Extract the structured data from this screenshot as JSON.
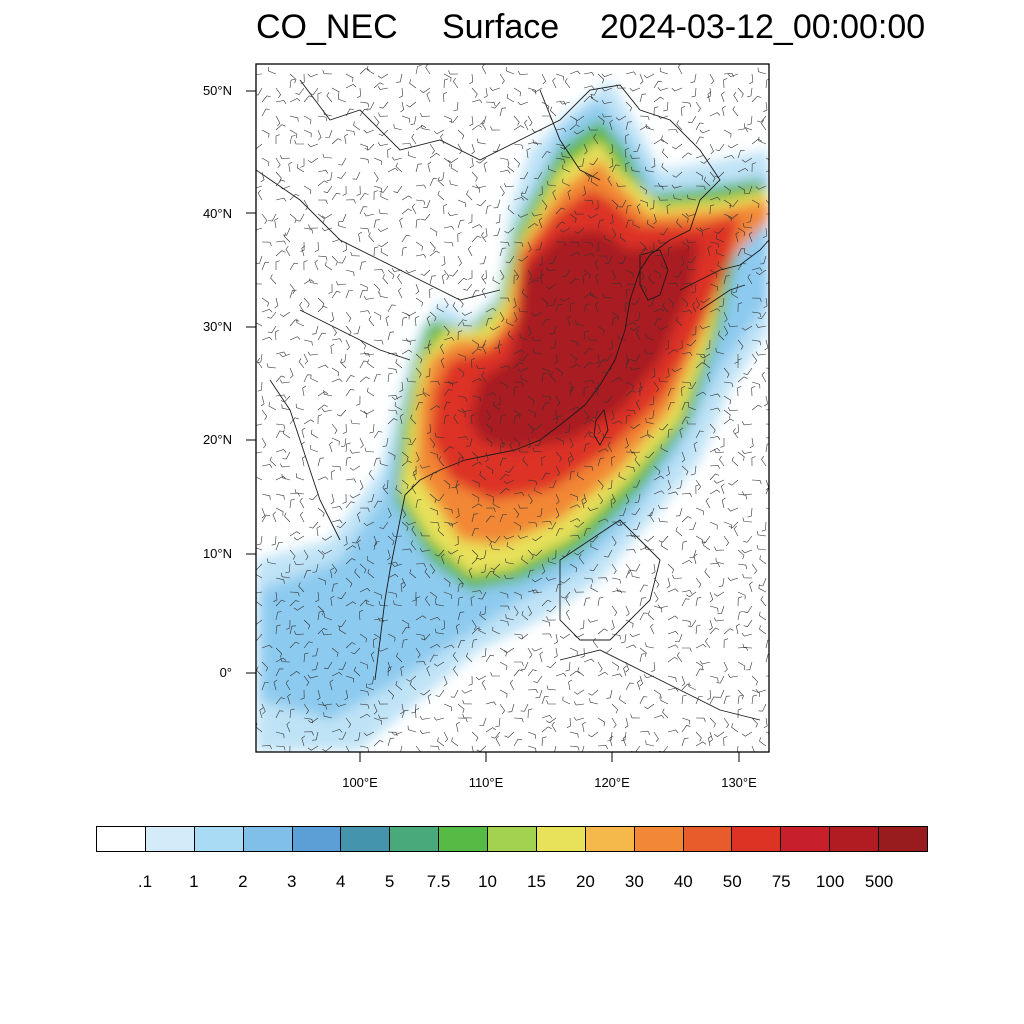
{
  "title": {
    "variable": "CO_NEC",
    "level": "Surface",
    "time": "2024-03-12_00:00:00"
  },
  "axes": {
    "lat_ticks": [
      "50°N",
      "40°N",
      "30°N",
      "20°N",
      "10°N",
      "0°"
    ],
    "lon_ticks": [
      "100°E",
      "110°E",
      "120°E",
      "130°E"
    ]
  },
  "colorbar": {
    "colors": [
      "#ffffff",
      "#d4ecf9",
      "#a9dcf4",
      "#80c0e8",
      "#5c9fd6",
      "#4594ad",
      "#4aa97a",
      "#55bb44",
      "#a3d150",
      "#e8e15a",
      "#f5b84a",
      "#f28736",
      "#e85c2b",
      "#dd3325",
      "#c8202a",
      "#b01c22",
      "#981b1e"
    ],
    "labels": [
      ".1",
      "1",
      "2",
      "3",
      "4",
      "5",
      "7.5",
      "10",
      "15",
      "20",
      "30",
      "40",
      "50",
      "75",
      "100",
      "500"
    ]
  },
  "colors": {
    "frame": "#000000",
    "coast": "#1a1a1a",
    "barbs": "#333333"
  }
}
